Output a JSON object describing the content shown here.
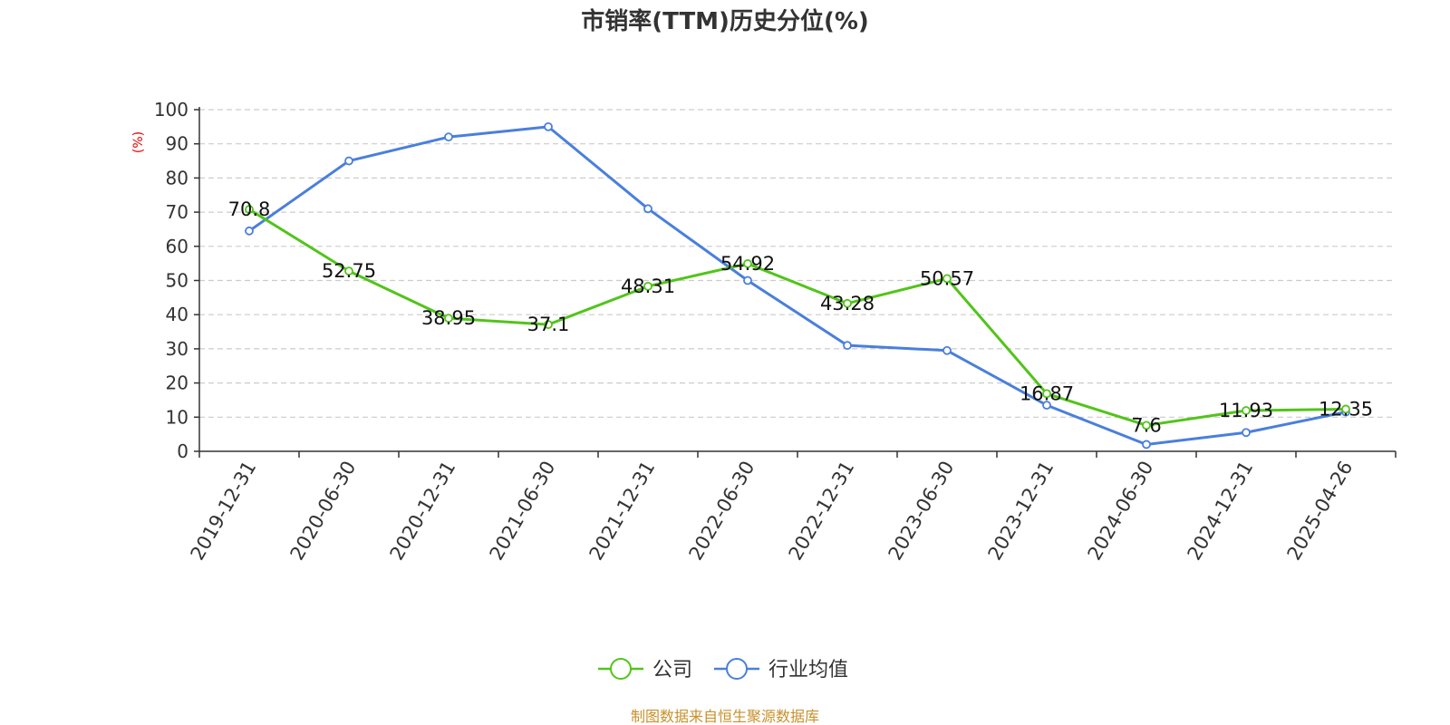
{
  "chart_data": {
    "type": "line",
    "title": "市销率(TTM)历史分位(%)",
    "ylabel": "(%)",
    "ylim": [
      0,
      100
    ],
    "yticks": [
      0,
      10,
      20,
      30,
      40,
      50,
      60,
      70,
      80,
      90,
      100
    ],
    "categories": [
      "2019-12-31",
      "2020-06-30",
      "2020-12-31",
      "2021-06-30",
      "2021-12-31",
      "2022-06-30",
      "2022-12-31",
      "2023-06-30",
      "2023-12-31",
      "2024-06-30",
      "2024-12-31",
      "2025-04-26"
    ],
    "grid": true,
    "legend_position": "bottom",
    "series": [
      {
        "name": "公司",
        "color": "#52c41a",
        "values": [
          70.8,
          52.75,
          38.95,
          37.1,
          48.31,
          54.92,
          43.28,
          50.57,
          16.87,
          7.6,
          11.93,
          12.35
        ],
        "labels": [
          "70.8",
          "52.75",
          "38.95",
          "37.1",
          "48.31",
          "54.92",
          "43.28",
          "50.57",
          "16.87",
          "7.6",
          "11.93",
          "12.35"
        ]
      },
      {
        "name": "行业均值",
        "color": "#4a7fdc",
        "values": [
          64.5,
          85,
          92,
          95,
          71,
          50,
          31,
          29.5,
          13.5,
          2,
          5.5,
          11.5
        ]
      }
    ]
  },
  "footer": {
    "source": "制图数据来自恒生聚源数据库"
  }
}
